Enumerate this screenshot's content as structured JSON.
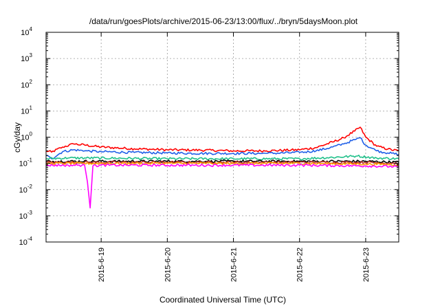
{
  "chart_data": {
    "type": "line",
    "title": "/data/run/goesPlots/archive/2015-06-23/13:00/flux/../bryn/5daysMoon.plot",
    "xlabel": "Coordinated Universal Time (UTC)",
    "ylabel": "cGy/day",
    "y_scale": "log",
    "ylim": [
      0.0001,
      10000
    ],
    "y_ticks": [
      {
        "base": "10",
        "exp": "-4",
        "value": 0.0001
      },
      {
        "base": "10",
        "exp": "-3",
        "value": 0.001
      },
      {
        "base": "10",
        "exp": "-2",
        "value": 0.01
      },
      {
        "base": "10",
        "exp": "-1",
        "value": 0.1
      },
      {
        "base": "10",
        "exp": "0",
        "value": 1
      },
      {
        "base": "10",
        "exp": "1",
        "value": 10
      },
      {
        "base": "10",
        "exp": "2",
        "value": 100
      },
      {
        "base": "10",
        "exp": "3",
        "value": 1000
      },
      {
        "base": "10",
        "exp": "4",
        "value": 10000
      }
    ],
    "xlim": [
      "2015-06-18 04:00",
      "2015-06-23 12:00"
    ],
    "x_ticks": [
      "2015-6-19",
      "2015-6-20",
      "2015-6-21",
      "2015-6-22",
      "2015-6-23"
    ],
    "grid": true,
    "series": [
      {
        "color": "#ff0000",
        "x": [
          "2015-06-18 04:00",
          "2015-06-18 06:00",
          "2015-06-18 10:00",
          "2015-06-18 14:00",
          "2015-06-18 18:00",
          "2015-06-19 00:00",
          "2015-06-19 12:00",
          "2015-06-20 00:00",
          "2015-06-20 12:00",
          "2015-06-21 00:00",
          "2015-06-21 12:00",
          "2015-06-22 00:00",
          "2015-06-22 06:00",
          "2015-06-22 12:00",
          "2015-06-22 16:00",
          "2015-06-22 20:00",
          "2015-06-22 22:00",
          "2015-06-23 00:00",
          "2015-06-23 04:00",
          "2015-06-23 08:00",
          "2015-06-23 12:00"
        ],
        "y": [
          0.3,
          0.27,
          0.42,
          0.55,
          0.5,
          0.42,
          0.36,
          0.33,
          0.32,
          0.3,
          0.3,
          0.33,
          0.4,
          0.65,
          0.95,
          1.7,
          2.4,
          1.0,
          0.45,
          0.35,
          0.3
        ]
      },
      {
        "color": "#1f5fe8",
        "x": [
          "2015-06-18 04:00",
          "2015-06-18 06:00",
          "2015-06-18 10:00",
          "2015-06-18 14:00",
          "2015-06-18 18:00",
          "2015-06-19 00:00",
          "2015-06-19 12:00",
          "2015-06-20 00:00",
          "2015-06-20 12:00",
          "2015-06-21 00:00",
          "2015-06-21 12:00",
          "2015-06-22 00:00",
          "2015-06-22 06:00",
          "2015-06-22 12:00",
          "2015-06-22 16:00",
          "2015-06-22 20:00",
          "2015-06-22 22:00",
          "2015-06-23 00:00",
          "2015-06-23 04:00",
          "2015-06-23 08:00",
          "2015-06-23 12:00"
        ],
        "y": [
          0.2,
          0.15,
          0.28,
          0.33,
          0.3,
          0.28,
          0.26,
          0.25,
          0.24,
          0.24,
          0.24,
          0.26,
          0.3,
          0.42,
          0.55,
          0.8,
          0.95,
          0.5,
          0.3,
          0.25,
          0.22
        ]
      },
      {
        "color": "#20c08a",
        "x": [
          "2015-06-18 04:00",
          "2015-06-18 12:00",
          "2015-06-19 00:00",
          "2015-06-20 00:00",
          "2015-06-21 00:00",
          "2015-06-22 00:00",
          "2015-06-22 12:00",
          "2015-06-22 21:00",
          "2015-06-23 04:00",
          "2015-06-23 12:00"
        ],
        "y": [
          0.15,
          0.16,
          0.16,
          0.15,
          0.15,
          0.15,
          0.17,
          0.19,
          0.16,
          0.15
        ]
      },
      {
        "color": "#000000",
        "x": [
          "2015-06-18 04:00",
          "2015-06-19 00:00",
          "2015-06-20 00:00",
          "2015-06-21 00:00",
          "2015-06-22 00:00",
          "2015-06-23 00:00",
          "2015-06-23 12:00"
        ],
        "y": [
          0.12,
          0.12,
          0.12,
          0.12,
          0.12,
          0.12,
          0.11
        ]
      },
      {
        "color": "#b52a2a",
        "x": [
          "2015-06-18 04:00",
          "2015-06-19 00:00",
          "2015-06-20 00:00",
          "2015-06-21 00:00",
          "2015-06-22 00:00",
          "2015-06-23 00:00",
          "2015-06-23 12:00"
        ],
        "y": [
          0.11,
          0.11,
          0.11,
          0.11,
          0.11,
          0.11,
          0.1
        ]
      },
      {
        "color": "#ff9a00",
        "x": [
          "2015-06-18 04:00",
          "2015-06-19 00:00",
          "2015-06-20 00:00",
          "2015-06-21 00:00",
          "2015-06-22 00:00",
          "2015-06-23 00:00",
          "2015-06-23 12:00"
        ],
        "y": [
          0.1,
          0.1,
          0.1,
          0.1,
          0.1,
          0.095,
          0.09
        ]
      },
      {
        "color": "#ff00ff",
        "x": [
          "2015-06-18 04:00",
          "2015-06-18 12:00",
          "2015-06-18 18:00",
          "2015-06-18 19:00",
          "2015-06-18 20:00",
          "2015-06-18 21:00",
          "2015-06-19 00:00",
          "2015-06-20 00:00",
          "2015-06-21 00:00",
          "2015-06-22 00:00",
          "2015-06-23 00:00",
          "2015-06-23 12:00"
        ],
        "y": [
          0.085,
          0.085,
          0.085,
          0.02,
          0.002,
          0.08,
          0.085,
          0.085,
          0.085,
          0.085,
          0.08,
          0.075
        ]
      }
    ]
  }
}
